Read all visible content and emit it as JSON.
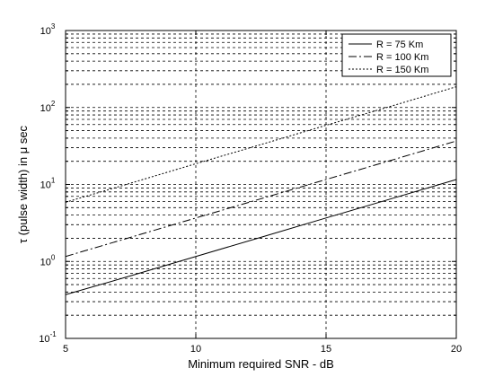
{
  "chart_data": {
    "type": "line",
    "xlabel": "Minimum required SNR - dB",
    "ylabel": "τ (pulse width) in μ sec",
    "x_scale": "linear",
    "y_scale": "log",
    "xlim": [
      5,
      20
    ],
    "ylim": [
      0.1,
      1000
    ],
    "x_ticks": [
      5,
      10,
      15,
      20
    ],
    "y_ticks": [
      {
        "base": "10",
        "exp": "-1",
        "value": 0.1
      },
      {
        "base": "10",
        "exp": "0",
        "value": 1
      },
      {
        "base": "10",
        "exp": "1",
        "value": 10
      },
      {
        "base": "10",
        "exp": "2",
        "value": 100
      },
      {
        "base": "10",
        "exp": "3",
        "value": 1000
      }
    ],
    "grid": true,
    "legend_position": "top-right",
    "x": [
      5,
      7.5,
      10,
      12.5,
      15,
      17.5,
      20
    ],
    "series": [
      {
        "name": "R = 75 Km",
        "style": "solid",
        "values": [
          0.37,
          0.65,
          1.16,
          2.06,
          3.67,
          6.52,
          11.6
        ]
      },
      {
        "name": "R = 100 Km",
        "style": "dashdot",
        "values": [
          1.16,
          2.06,
          3.67,
          6.52,
          11.6,
          20.6,
          36.7
        ]
      },
      {
        "name": "R = 150 Km",
        "style": "dotted",
        "values": [
          5.87,
          10.4,
          18.6,
          33.0,
          58.7,
          104,
          186
        ]
      }
    ],
    "colors": {
      "line": "#000000",
      "grid": "#000000",
      "background": "#ffffff"
    }
  }
}
